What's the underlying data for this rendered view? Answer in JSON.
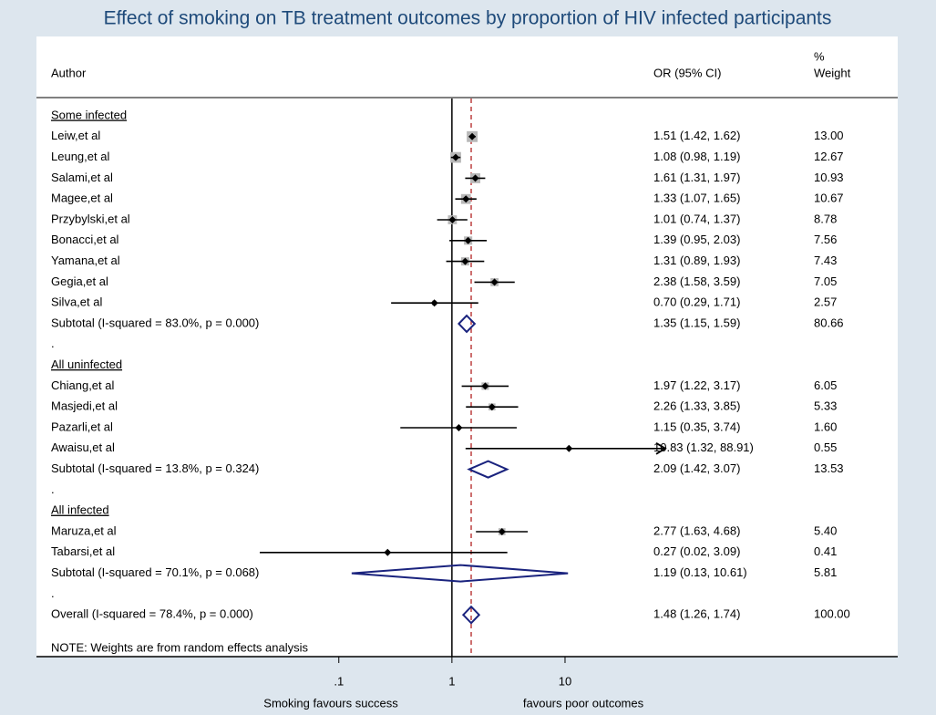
{
  "chart_data": {
    "type": "forest",
    "title": "Effect of smoking on TB treatment outcomes by proportion of HIV infected participants",
    "columns": {
      "author": "Author",
      "ci": "OR (95% CI)",
      "weight_top": "%",
      "weight": "Weight"
    },
    "groups": [
      {
        "name": "Some infected",
        "studies": [
          {
            "author": "Leiw,et al",
            "or": 1.51,
            "lower": 1.42,
            "upper": 1.62,
            "ci_label": "1.51 (1.42, 1.62)",
            "weight": 13.0,
            "weight_label": "13.00"
          },
          {
            "author": "Leung,et al",
            "or": 1.08,
            "lower": 0.98,
            "upper": 1.19,
            "ci_label": "1.08 (0.98, 1.19)",
            "weight": 12.67,
            "weight_label": "12.67"
          },
          {
            "author": "Salami,et al",
            "or": 1.61,
            "lower": 1.31,
            "upper": 1.97,
            "ci_label": "1.61 (1.31, 1.97)",
            "weight": 10.93,
            "weight_label": "10.93"
          },
          {
            "author": "Magee,et al",
            "or": 1.33,
            "lower": 1.07,
            "upper": 1.65,
            "ci_label": "1.33 (1.07, 1.65)",
            "weight": 10.67,
            "weight_label": "10.67"
          },
          {
            "author": "Przybylski,et al",
            "or": 1.01,
            "lower": 0.74,
            "upper": 1.37,
            "ci_label": "1.01 (0.74, 1.37)",
            "weight": 8.78,
            "weight_label": "8.78"
          },
          {
            "author": "Bonacci,et al",
            "or": 1.39,
            "lower": 0.95,
            "upper": 2.03,
            "ci_label": "1.39 (0.95, 2.03)",
            "weight": 7.56,
            "weight_label": "7.56"
          },
          {
            "author": "Yamana,et al",
            "or": 1.31,
            "lower": 0.89,
            "upper": 1.93,
            "ci_label": "1.31 (0.89, 1.93)",
            "weight": 7.43,
            "weight_label": "7.43"
          },
          {
            "author": "Gegia,et al",
            "or": 2.38,
            "lower": 1.58,
            "upper": 3.59,
            "ci_label": "2.38 (1.58, 3.59)",
            "weight": 7.05,
            "weight_label": "7.05"
          },
          {
            "author": "Silva,et al",
            "or": 0.7,
            "lower": 0.29,
            "upper": 1.71,
            "ci_label": "0.70 (0.29, 1.71)",
            "weight": 2.57,
            "weight_label": "2.57"
          }
        ],
        "subtotal": {
          "label": "Subtotal  (I-squared = 83.0%, p = 0.000)",
          "or": 1.35,
          "lower": 1.15,
          "upper": 1.59,
          "ci_label": "1.35 (1.15, 1.59)",
          "weight": 80.66,
          "weight_label": "80.66"
        },
        "spacer": "."
      },
      {
        "name": "All uninfected",
        "studies": [
          {
            "author": "Chiang,et al",
            "or": 1.97,
            "lower": 1.22,
            "upper": 3.17,
            "ci_label": "1.97 (1.22, 3.17)",
            "weight": 6.05,
            "weight_label": "6.05"
          },
          {
            "author": "Masjedi,et al",
            "or": 2.26,
            "lower": 1.33,
            "upper": 3.85,
            "ci_label": "2.26 (1.33, 3.85)",
            "weight": 5.33,
            "weight_label": "5.33"
          },
          {
            "author": "Pazarli,et al",
            "or": 1.15,
            "lower": 0.35,
            "upper": 3.74,
            "ci_label": "1.15 (0.35, 3.74)",
            "weight": 1.6,
            "weight_label": "1.60"
          },
          {
            "author": "Awaisu,et al",
            "or": 10.83,
            "lower": 1.32,
            "upper": 88.91,
            "ci_label": "10.83 (1.32, 88.91)",
            "weight": 0.55,
            "weight_label": "0.55"
          }
        ],
        "subtotal": {
          "label": "Subtotal  (I-squared = 13.8%, p = 0.324)",
          "or": 2.09,
          "lower": 1.42,
          "upper": 3.07,
          "ci_label": "2.09 (1.42, 3.07)",
          "weight": 13.53,
          "weight_label": "13.53"
        },
        "spacer": "."
      },
      {
        "name": "All infected",
        "studies": [
          {
            "author": "Maruza,et al",
            "or": 2.77,
            "lower": 1.63,
            "upper": 4.68,
            "ci_label": "2.77 (1.63, 4.68)",
            "weight": 5.4,
            "weight_label": "5.40"
          },
          {
            "author": "Tabarsi,et al",
            "or": 0.27,
            "lower": 0.02,
            "upper": 3.09,
            "ci_label": "0.27 (0.02, 3.09)",
            "weight": 0.41,
            "weight_label": "0.41"
          }
        ],
        "subtotal": {
          "label": "Subtotal  (I-squared = 70.1%, p = 0.068)",
          "or": 1.19,
          "lower": 0.13,
          "upper": 10.61,
          "ci_label": "1.19 (0.13, 10.61)",
          "weight": 5.81,
          "weight_label": "5.81"
        },
        "spacer": "."
      }
    ],
    "overall": {
      "label": "Overall  (I-squared = 78.4%, p = 0.000)",
      "or": 1.48,
      "lower": 1.26,
      "upper": 1.74,
      "ci_label": "1.48 (1.26, 1.74)",
      "weight": 100.0,
      "weight_label": "100.00"
    },
    "note": "NOTE: Weights are from random effects analysis",
    "null_value": 1,
    "log_scale": true,
    "xlim": [
      0.02,
      77
    ],
    "xticks": [
      {
        "value": 0.1,
        "label": ".1"
      },
      1,
      10
    ],
    "x_label_left": "Smoking favours success",
    "x_label_right": "favours poor outcomes"
  }
}
